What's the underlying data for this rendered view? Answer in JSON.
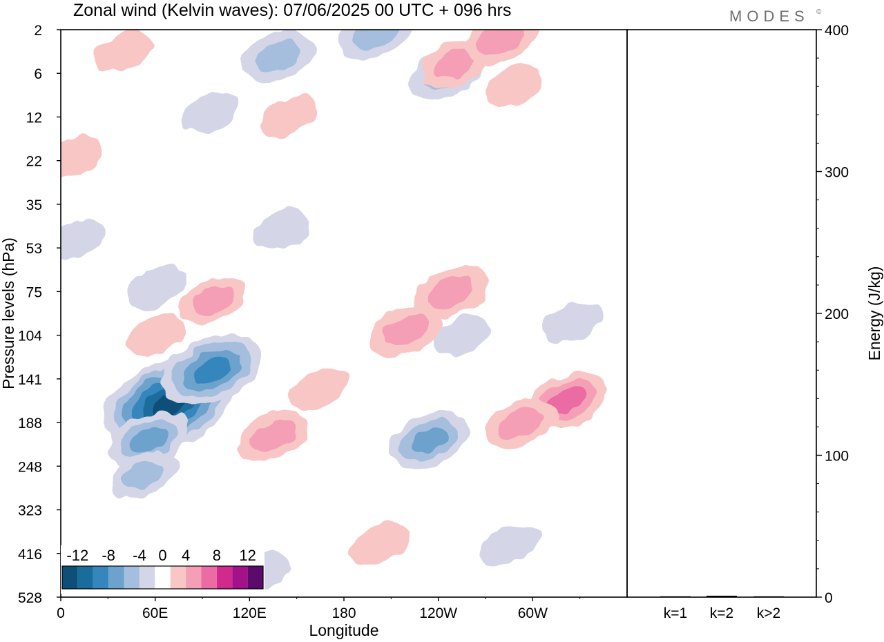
{
  "title": "Zonal wind (Kelvin waves):  07/06/2025  00 UTC  + 096 hrs",
  "brand": "MODES",
  "brand_mark": "©",
  "colors": {
    "neg": [
      "#0d4f78",
      "#1a6c9c",
      "#3486bd",
      "#6ca2cc",
      "#a5bedd",
      "#d4d6e8"
    ],
    "zero": "#ffffff",
    "pos": [
      "#f8c6c4",
      "#f49fb6",
      "#ea6ca2",
      "#cf2a8c",
      "#a3128a",
      "#5c0a6c"
    ]
  },
  "chart_data": [
    {
      "type": "heatmap",
      "title": "Zonal wind (Kelvin waves):  07/06/2025  00 UTC  + 096 hrs",
      "xlabel": "Longitude",
      "ylabel": "Pressure levels (hPa)",
      "x_ticks": [
        "0",
        "60E",
        "120E",
        "180",
        "120W",
        "60W"
      ],
      "x_tick_values": [
        0,
        60,
        120,
        180,
        240,
        300
      ],
      "xlim": [
        0,
        360
      ],
      "y_ticks": [
        "2",
        "6",
        "12",
        "22",
        "35",
        "53",
        "75",
        "104",
        "141",
        "188",
        "248",
        "323",
        "416",
        "528"
      ],
      "y_scale": "level-index",
      "y_direction": "top-to-bottom",
      "colorbar": {
        "labels": [
          "-12",
          "-8",
          "-4",
          "0",
          "4",
          "8",
          "12"
        ],
        "label_values": [
          -12,
          -8,
          -4,
          0,
          4,
          8,
          12
        ],
        "edges": [
          -14,
          -12,
          -10,
          -8,
          -6,
          -4,
          -2,
          2,
          4,
          6,
          8,
          10,
          12,
          14
        ],
        "placement": "bottom-left"
      },
      "features": [
        {
          "sign": "neg",
          "lon": 68,
          "level": 8.6,
          "peak": -13
        },
        {
          "sign": "neg",
          "lon": 96,
          "level": 7.8,
          "peak": -9
        },
        {
          "sign": "neg",
          "lon": 56,
          "level": 9.4,
          "peak": -6
        },
        {
          "sign": "neg",
          "lon": 53,
          "level": 10.2,
          "peak": -4
        },
        {
          "sign": "neg",
          "lon": 234,
          "level": 9.4,
          "peak": -6
        },
        {
          "sign": "neg",
          "lon": 140,
          "level": 4.6,
          "peak": -3
        },
        {
          "sign": "neg",
          "lon": 60,
          "level": 5.9,
          "peak": -3
        },
        {
          "sign": "neg",
          "lon": 325,
          "level": 6.7,
          "peak": -3
        },
        {
          "sign": "neg",
          "lon": 255,
          "level": 7.0,
          "peak": -3
        },
        {
          "sign": "neg",
          "lon": 128,
          "level": 12.4,
          "peak": -3
        },
        {
          "sign": "neg",
          "lon": 285,
          "level": 11.8,
          "peak": -3
        },
        {
          "sign": "neg",
          "lon": 138,
          "level": 0.6,
          "peak": -5
        },
        {
          "sign": "neg",
          "lon": 245,
          "level": 1.0,
          "peak": -5
        },
        {
          "sign": "neg",
          "lon": 200,
          "level": 0.1,
          "peak": -5
        },
        {
          "sign": "neg",
          "lon": 95,
          "level": 1.9,
          "peak": -3
        },
        {
          "sign": "neg",
          "lon": 10,
          "level": 4.8,
          "peak": -3
        },
        {
          "sign": "pos",
          "lon": 135,
          "level": 9.3,
          "peak": 5
        },
        {
          "sign": "pos",
          "lon": 165,
          "level": 8.2,
          "peak": 3
        },
        {
          "sign": "pos",
          "lon": 248,
          "level": 6.0,
          "peak": 5
        },
        {
          "sign": "pos",
          "lon": 220,
          "level": 6.9,
          "peak": 5
        },
        {
          "sign": "pos",
          "lon": 322,
          "level": 8.5,
          "peak": 6
        },
        {
          "sign": "pos",
          "lon": 293,
          "level": 9.0,
          "peak": 5
        },
        {
          "sign": "pos",
          "lon": 96,
          "level": 6.2,
          "peak": 4
        },
        {
          "sign": "pos",
          "lon": 60,
          "level": 7.0,
          "peak": 3
        },
        {
          "sign": "pos",
          "lon": 202,
          "level": 11.8,
          "peak": 3
        },
        {
          "sign": "pos",
          "lon": 145,
          "level": 2.0,
          "peak": 3
        },
        {
          "sign": "pos",
          "lon": 250,
          "level": 0.8,
          "peak": 4
        },
        {
          "sign": "pos",
          "lon": 288,
          "level": 1.3,
          "peak": 3
        },
        {
          "sign": "pos",
          "lon": 280,
          "level": 0.2,
          "peak": 5
        },
        {
          "sign": "pos",
          "lon": 8,
          "level": 2.9,
          "peak": 3
        },
        {
          "sign": "pos",
          "lon": 40,
          "level": 0.5,
          "peak": 3
        }
      ]
    },
    {
      "type": "bar",
      "categories": [
        "k=1",
        "k=2",
        "k>2"
      ],
      "values": [
        0.5,
        1.0,
        0.5
      ],
      "ylabel": "Energy (J/kg)",
      "ylim": [
        0,
        400
      ],
      "y_ticks": [
        "0",
        "100",
        "200",
        "300",
        "400"
      ],
      "y_tick_values": [
        0,
        100,
        200,
        300,
        400
      ],
      "y_axis_side": "right"
    }
  ]
}
